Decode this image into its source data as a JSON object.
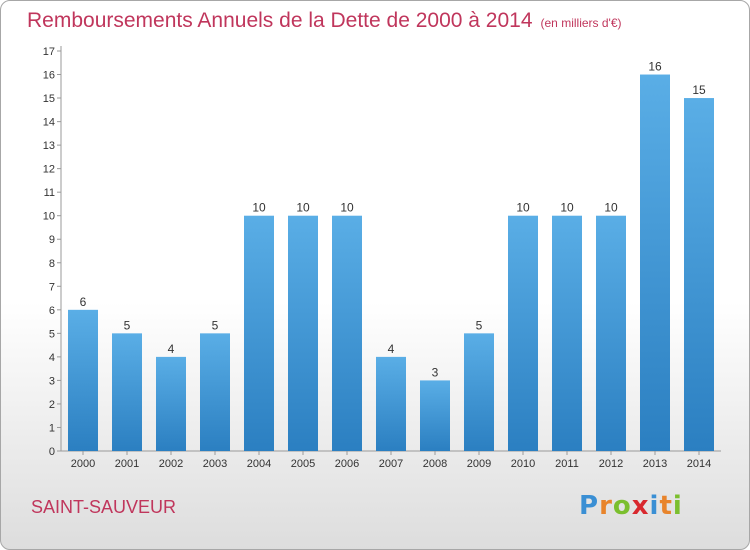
{
  "header": {
    "title": "Remboursements Annuels de la Dette de 2000 à 2014",
    "unit": "(en milliers d'€)"
  },
  "footer": {
    "town": "SAINT-SAUVEUR",
    "logo_letters": [
      "P",
      "r",
      "o",
      "x",
      "i",
      "t",
      "i"
    ],
    "logo_colors": [
      "#3a8fd4",
      "#e8842b",
      "#7bbf2e",
      "#d8282e",
      "#3a8fd4",
      "#e8842b",
      "#7bbf2e"
    ]
  },
  "chart_data": {
    "type": "bar",
    "title": "Remboursements Annuels de la Dette de 2000 à 2014",
    "xlabel": "",
    "ylabel": "",
    "categories": [
      "2000",
      "2001",
      "2002",
      "2003",
      "2004",
      "2005",
      "2006",
      "2007",
      "2008",
      "2009",
      "2010",
      "2011",
      "2012",
      "2013",
      "2014"
    ],
    "values": [
      6,
      5,
      4,
      5,
      10,
      10,
      10,
      4,
      3,
      5,
      10,
      10,
      10,
      16,
      15
    ],
    "data_labels": [
      "6",
      "5",
      "4",
      "5",
      "10",
      "10",
      "10",
      "4",
      "3",
      "5",
      "10",
      "10",
      "10",
      "16",
      "15"
    ],
    "y_ticks": [
      "0",
      "1",
      "2",
      "3",
      "4",
      "5",
      "6",
      "7",
      "8",
      "9",
      "10",
      "11",
      "12",
      "13",
      "14",
      "15",
      "16",
      "17"
    ],
    "ylim": [
      0,
      17
    ],
    "grid": false,
    "legend": "none",
    "bar_color": "#5aaee6",
    "bar_color_dark": "#2b7fc1"
  }
}
